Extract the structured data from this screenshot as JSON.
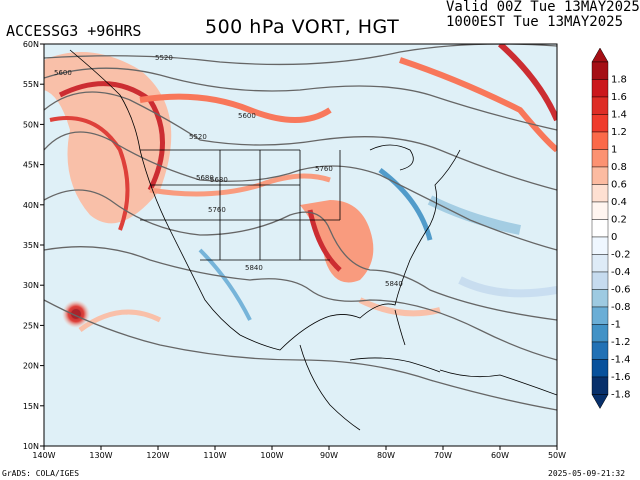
{
  "header": {
    "model": "ACCESSG3 +96HRS",
    "title": "500 hPa VORT, HGT",
    "valid_line": "Valid 00Z Tue 13MAY2025",
    "init_line": "1000EST Tue 13MAY2025"
  },
  "footer": {
    "credit": "GrADS: COLA/IGES",
    "timestamp": "2025-05-09-21:32"
  },
  "map": {
    "lon_labels": [
      "140W",
      "130W",
      "120W",
      "110W",
      "100W",
      "90W",
      "80W",
      "70W",
      "60W",
      "50W"
    ],
    "lat_labels": [
      "60N",
      "55N",
      "50N",
      "45N",
      "40N",
      "35N",
      "30N",
      "25N",
      "20N",
      "15N",
      "10N"
    ],
    "contour_labels": [
      "5520",
      "5600",
      "5520",
      "5600",
      "5680",
      "5760",
      "5840",
      "5840",
      "5760",
      "5680"
    ]
  },
  "colorbar": {
    "labels": [
      "1.8",
      "1.6",
      "1.4",
      "1.2",
      "1",
      "0.8",
      "0.6",
      "0.4",
      "0.2",
      "0",
      "-0.2",
      "-0.4",
      "-0.6",
      "-0.8",
      "-1",
      "-1.2",
      "-1.4",
      "-1.6",
      "-1.8"
    ],
    "colors": [
      "#a50f15",
      "#cb181d",
      "#de2d26",
      "#ef3b2c",
      "#fb6a4a",
      "#fc9272",
      "#fcbba1",
      "#fee0d2",
      "#fff5f0",
      "#ffffff",
      "#eff7ff",
      "#deebf7",
      "#c6dbef",
      "#9ecae1",
      "#6baed6",
      "#4292c6",
      "#2171b5",
      "#08519c",
      "#08306b"
    ]
  }
}
